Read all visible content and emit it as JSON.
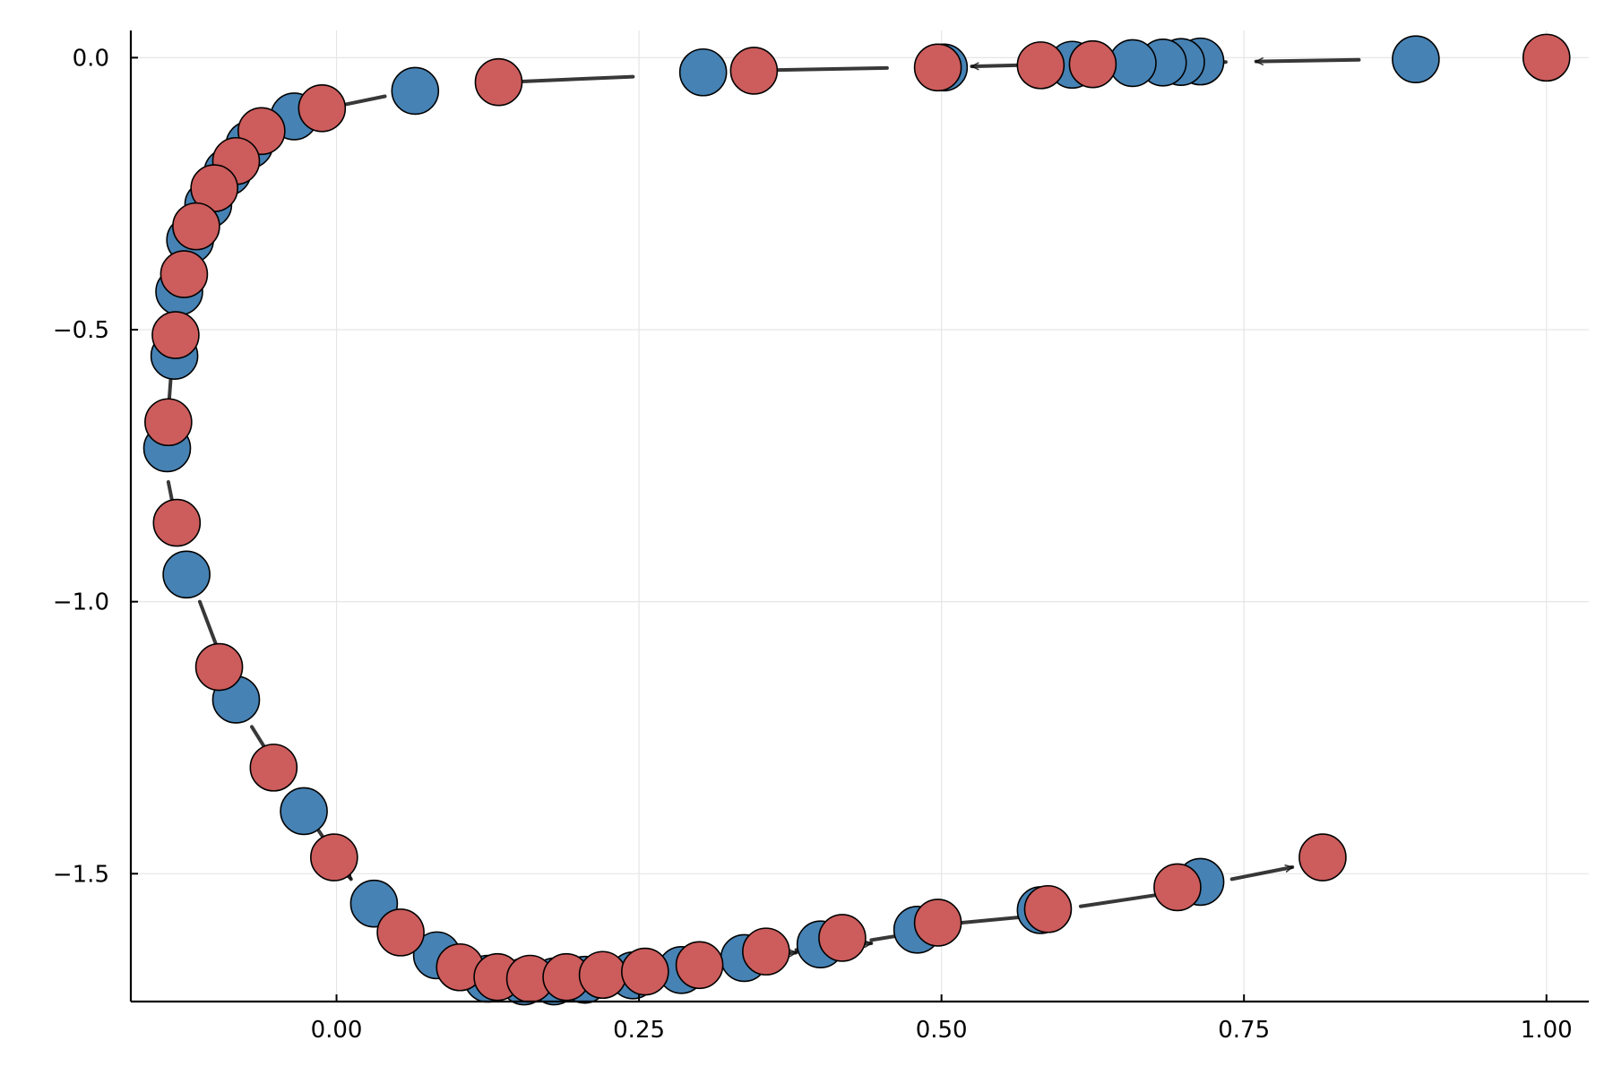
{
  "chart_data": {
    "type": "scatter",
    "title": "",
    "xlabel": "",
    "ylabel": "",
    "xlim": [
      -0.17,
      1.035
    ],
    "ylim": [
      -1.735,
      0.05
    ],
    "x_ticks": [
      0.0,
      0.25,
      0.5,
      0.75,
      1.0
    ],
    "x_tick_labels": [
      "0.00",
      "0.25",
      "0.50",
      "0.75",
      "1.00"
    ],
    "y_ticks": [
      0.0,
      -0.5,
      -1.0,
      -1.5
    ],
    "y_tick_labels": [
      "0.0",
      "−0.5",
      "−1.0",
      "−1.5"
    ],
    "grid": true,
    "legend": "none",
    "marker_colors": {
      "blue": "#4682b4",
      "red": "#cd5c5c"
    },
    "arrow_color": "#000000",
    "series": [
      {
        "color": "blue",
        "points": [
          [
            0.892,
            -0.003
          ],
          [
            0.714,
            -0.007
          ],
          [
            0.698,
            -0.008
          ],
          [
            0.683,
            -0.009
          ],
          [
            0.658,
            -0.01
          ],
          [
            0.608,
            -0.013
          ],
          [
            0.502,
            -0.018
          ],
          [
            0.303,
            -0.027
          ],
          [
            0.065,
            -0.061
          ],
          [
            -0.035,
            -0.108
          ],
          [
            -0.072,
            -0.16
          ],
          [
            -0.09,
            -0.21
          ],
          [
            -0.106,
            -0.27
          ],
          [
            -0.121,
            -0.335
          ],
          [
            -0.13,
            -0.43
          ],
          [
            -0.134,
            -0.548
          ],
          [
            -0.14,
            -0.718
          ],
          [
            -0.124,
            -0.95
          ],
          [
            -0.083,
            -1.18
          ],
          [
            -0.027,
            -1.385
          ],
          [
            0.031,
            -1.555
          ],
          [
            0.083,
            -1.65
          ],
          [
            0.125,
            -1.693
          ],
          [
            0.155,
            -1.698
          ],
          [
            0.18,
            -1.698
          ],
          [
            0.205,
            -1.695
          ],
          [
            0.245,
            -1.687
          ],
          [
            0.285,
            -1.677
          ],
          [
            0.337,
            -1.655
          ],
          [
            0.4,
            -1.63
          ],
          [
            0.48,
            -1.603
          ],
          [
            0.582,
            -1.567
          ],
          [
            0.714,
            -1.515
          ]
        ]
      },
      {
        "color": "red",
        "points": [
          [
            1.0,
            0.0
          ],
          [
            0.625,
            -0.012
          ],
          [
            0.582,
            -0.014
          ],
          [
            0.497,
            -0.018
          ],
          [
            0.345,
            -0.024
          ],
          [
            0.134,
            -0.045
          ],
          [
            -0.012,
            -0.093
          ],
          [
            -0.062,
            -0.135
          ],
          [
            -0.083,
            -0.19
          ],
          [
            -0.101,
            -0.24
          ],
          [
            -0.116,
            -0.31
          ],
          [
            -0.126,
            -0.398
          ],
          [
            -0.133,
            -0.51
          ],
          [
            -0.139,
            -0.67
          ],
          [
            -0.132,
            -0.855
          ],
          [
            -0.097,
            -1.12
          ],
          [
            -0.052,
            -1.305
          ],
          [
            -0.002,
            -1.47
          ],
          [
            0.053,
            -1.608
          ],
          [
            0.102,
            -1.672
          ],
          [
            0.133,
            -1.69
          ],
          [
            0.16,
            -1.693
          ],
          [
            0.19,
            -1.69
          ],
          [
            0.22,
            -1.686
          ],
          [
            0.255,
            -1.68
          ],
          [
            0.3,
            -1.668
          ],
          [
            0.355,
            -1.643
          ],
          [
            0.418,
            -1.618
          ],
          [
            0.497,
            -1.59
          ],
          [
            0.588,
            -1.565
          ],
          [
            0.695,
            -1.525
          ],
          [
            0.815,
            -1.47
          ]
        ]
      }
    ],
    "arrows": [
      [
        [
          0.845,
          -0.004
        ],
        [
          0.76,
          -0.007
        ]
      ],
      [
        [
          0.581,
          -0.013
        ],
        [
          0.525,
          -0.016
        ]
      ],
      [
        [
          0.455,
          -0.019
        ],
        [
          0.355,
          -0.023
        ]
      ],
      [
        [
          0.245,
          -0.035
        ],
        [
          0.14,
          -0.045
        ]
      ],
      [
        [
          0.04,
          -0.071
        ],
        [
          -0.008,
          -0.093
        ]
      ],
      [
        [
          -0.075,
          -0.14
        ],
        [
          -0.096,
          -0.165
        ]
      ],
      [
        [
          -0.096,
          -0.19
        ],
        [
          -0.114,
          -0.245
        ]
      ],
      [
        [
          -0.112,
          -0.27
        ],
        [
          -0.125,
          -0.32
        ]
      ],
      [
        [
          -0.124,
          -0.335
        ],
        [
          -0.135,
          -0.405
        ]
      ],
      [
        [
          -0.131,
          -0.46
        ],
        [
          -0.137,
          -0.525
        ]
      ],
      [
        [
          -0.137,
          -0.59
        ],
        [
          -0.14,
          -0.68
        ]
      ],
      [
        [
          -0.139,
          -0.78
        ],
        [
          -0.13,
          -0.88
        ]
      ],
      [
        [
          -0.113,
          -1.0
        ],
        [
          -0.09,
          -1.135
        ]
      ],
      [
        [
          -0.07,
          -1.23
        ],
        [
          -0.042,
          -1.33
        ]
      ],
      [
        [
          -0.015,
          -1.42
        ],
        [
          0.012,
          -1.51
        ]
      ],
      [
        [
          0.044,
          -1.578
        ],
        [
          0.073,
          -1.62
        ]
      ],
      [
        [
          0.108,
          -1.68
        ],
        [
          0.148,
          -1.695
        ]
      ],
      [
        [
          0.148,
          -1.695
        ],
        [
          0.175,
          -1.695
        ]
      ],
      [
        [
          0.2,
          -1.692
        ],
        [
          0.24,
          -1.69
        ]
      ],
      [
        [
          0.24,
          -1.688
        ],
        [
          0.28,
          -1.683
        ]
      ],
      [
        [
          0.28,
          -1.674
        ],
        [
          0.325,
          -1.662
        ]
      ],
      [
        [
          0.325,
          -1.655
        ],
        [
          0.38,
          -1.645
        ]
      ],
      [
        [
          0.38,
          -1.64
        ],
        [
          0.442,
          -1.628
        ]
      ],
      [
        [
          0.442,
          -1.622
        ],
        [
          0.503,
          -1.6
        ]
      ],
      [
        [
          0.508,
          -1.592
        ],
        [
          0.58,
          -1.577
        ]
      ],
      [
        [
          0.615,
          -1.56
        ],
        [
          0.69,
          -1.535
        ]
      ],
      [
        [
          0.74,
          -1.51
        ],
        [
          0.79,
          -1.488
        ]
      ],
      [
        [
          0.735,
          -0.008
        ],
        [
          0.705,
          -0.01
        ]
      ],
      [
        [
          0.715,
          -0.009
        ],
        [
          0.682,
          -0.011
        ]
      ],
      [
        [
          0.69,
          -0.01
        ],
        [
          0.662,
          -0.012
        ]
      ]
    ]
  }
}
